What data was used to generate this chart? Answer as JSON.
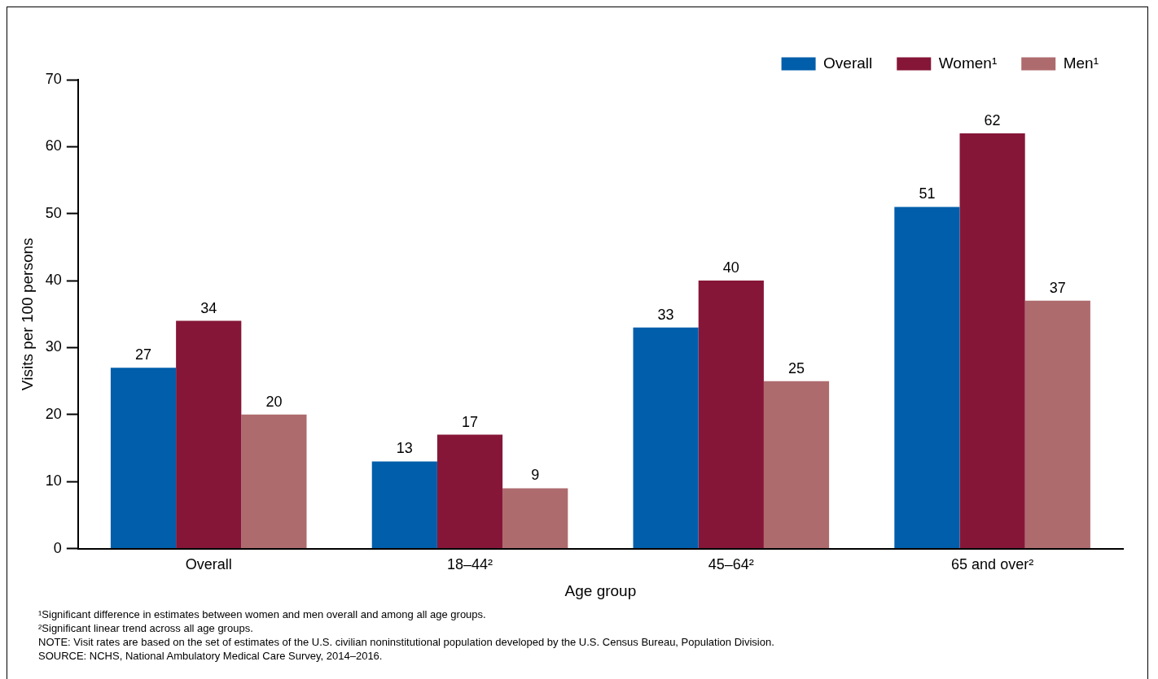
{
  "chart_data": {
    "type": "bar",
    "xlabel": "Age group",
    "ylabel": "Visits per 100 persons",
    "categories": [
      "Overall",
      "18–44²",
      "45–64²",
      "65 and over²"
    ],
    "series": [
      {
        "name": "Overall",
        "color": "#005eaa",
        "values": [
          27,
          13,
          33,
          51
        ]
      },
      {
        "name": "Women¹",
        "color": "#861638",
        "values": [
          34,
          17,
          40,
          62
        ]
      },
      {
        "name": "Men¹",
        "color": "#ae6b6e",
        "values": [
          20,
          9,
          25,
          37
        ]
      }
    ],
    "ylim": [
      0,
      70
    ],
    "yticks": [
      0,
      10,
      20,
      30,
      40,
      50,
      60,
      70
    ],
    "grid": false,
    "legend": "top right",
    "data_labels": true,
    "annotations": [
      "¹Significant difference in estimates between women and men overall and among all age groups.",
      "²Significant linear trend across all age groups.",
      "NOTE: Visit rates are based on the set of estimates of the U.S. civilian noninstitutional population developed by the U.S. Census Bureau, Population Division.",
      "SOURCE: NCHS, National Ambulatory Medical Care Survey, 2014–2016."
    ]
  }
}
